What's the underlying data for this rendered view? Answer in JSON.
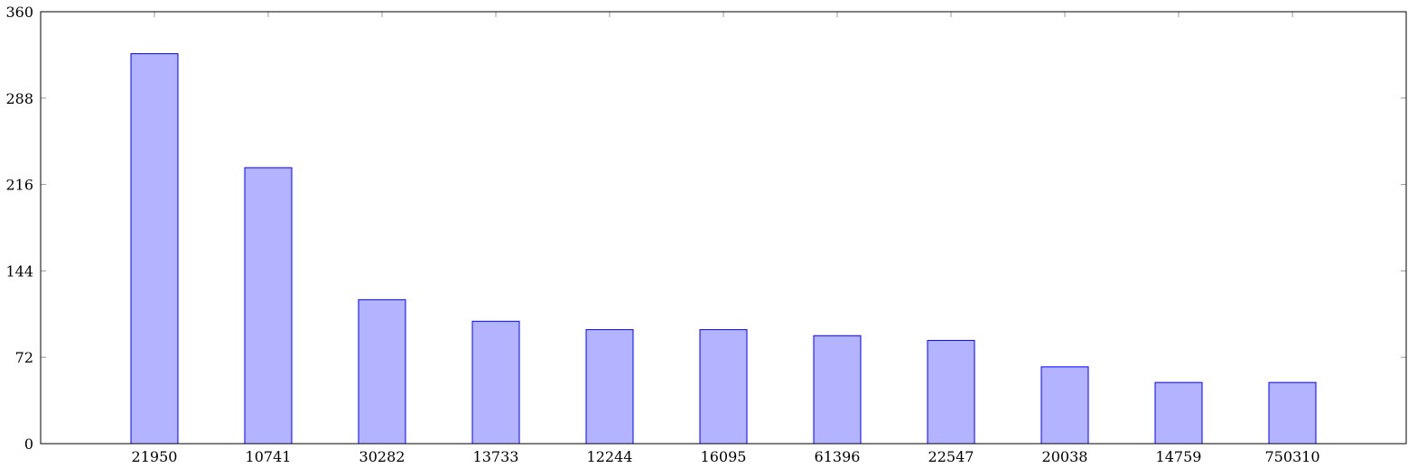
{
  "chart_data": {
    "type": "bar",
    "categories": [
      "21950",
      "10741",
      "30282",
      "13733",
      "12244",
      "16095",
      "61396",
      "22547",
      "20038",
      "14759",
      "750310"
    ],
    "values": [
      325,
      230,
      120,
      102,
      95,
      95,
      90,
      86,
      64,
      51,
      51
    ],
    "yticks": [
      0,
      72,
      144,
      216,
      288,
      360
    ],
    "ytick_labels": [
      "0",
      "72",
      "144",
      "216",
      "288",
      "360"
    ],
    "ylim": [
      0,
      360
    ],
    "title": "",
    "xlabel": "",
    "ylabel": "",
    "grid": false,
    "colors": {
      "bar_fill": "#b3b3ff",
      "bar_stroke": "#0000ff",
      "axis": "#000000",
      "tick": "#999999"
    }
  }
}
